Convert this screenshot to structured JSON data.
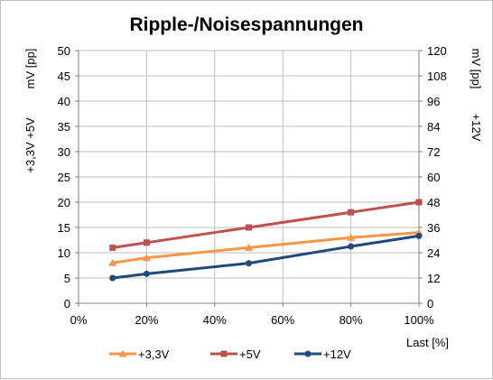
{
  "chart_data": {
    "type": "line",
    "title": "Ripple-/Noisespannungen",
    "xlabel": "Last [%]",
    "ylabel_left_unit": "mV [pp]",
    "ylabel_left_series": "+3,3V  +5V",
    "ylabel_right_unit": "mV [pp]",
    "ylabel_right_series": "+12V",
    "xlim": [
      0,
      100
    ],
    "x_ticks": [
      "0%",
      "20%",
      "40%",
      "60%",
      "80%",
      "100%"
    ],
    "ylim_left": [
      0,
      50
    ],
    "y_ticks_left": [
      "0",
      "5",
      "10",
      "15",
      "20",
      "25",
      "30",
      "35",
      "40",
      "45",
      "50"
    ],
    "ylim_right": [
      0,
      120
    ],
    "y_ticks_right": [
      "0",
      "12",
      "24",
      "36",
      "48",
      "60",
      "72",
      "84",
      "96",
      "108",
      "120"
    ],
    "grid": true,
    "legend_position": "bottom",
    "series": [
      {
        "name": "+3,3V",
        "axis": "left",
        "color": "#f79646",
        "marker": "triangle",
        "x": [
          10,
          20,
          50,
          80,
          100
        ],
        "y": [
          8,
          9,
          11,
          13,
          14
        ]
      },
      {
        "name": "+5V",
        "axis": "left",
        "color": "#c0504d",
        "marker": "square",
        "x": [
          10,
          20,
          50,
          80,
          100
        ],
        "y": [
          11,
          12,
          15,
          18,
          20
        ]
      },
      {
        "name": "+12V",
        "axis": "right",
        "color": "#1f497d",
        "marker": "circle",
        "x": [
          10,
          20,
          50,
          80,
          100
        ],
        "y": [
          12,
          14,
          19,
          27,
          32
        ]
      }
    ]
  }
}
